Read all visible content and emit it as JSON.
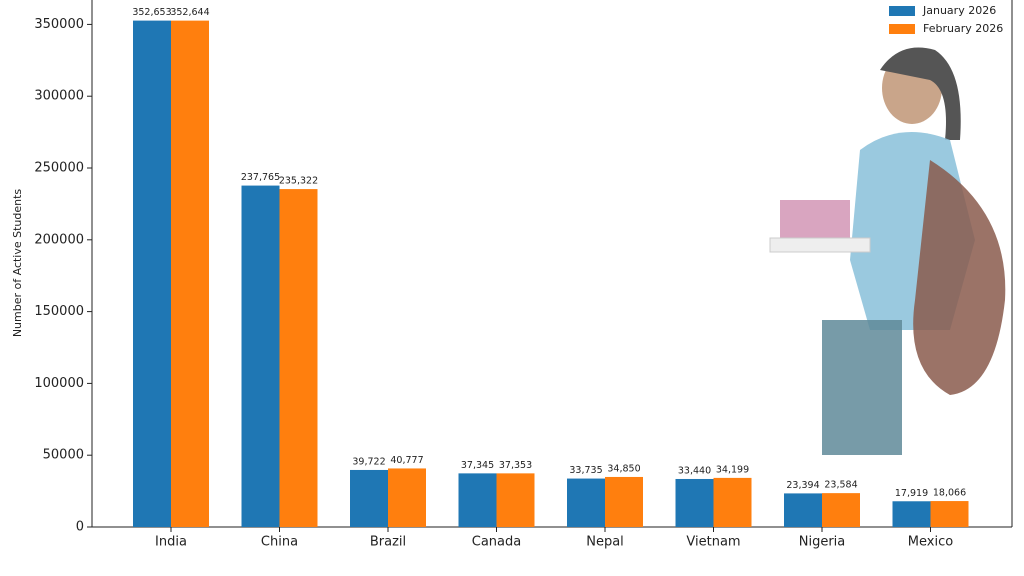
{
  "chart_data": {
    "type": "grouped_bar",
    "ylabel": "Number of Active Students",
    "categories": [
      "India",
      "China",
      "Brazil",
      "Canada",
      "Nepal",
      "Vietnam",
      "Nigeria",
      "Mexico"
    ],
    "series": [
      {
        "name": "January 2026",
        "color": "#1f77b4",
        "values": [
          352653,
          237765,
          39722,
          37345,
          33735,
          33440,
          23394,
          17919
        ],
        "value_labels": [
          "352,653",
          "237,765",
          "39,722",
          "37,345",
          "33,735",
          "33,440",
          "23,394",
          "17,919"
        ]
      },
      {
        "name": "February 2026",
        "color": "#ff7f0e",
        "values": [
          352644,
          235322,
          40777,
          37353,
          34850,
          34199,
          23584,
          18066
        ],
        "value_labels": [
          "352,644",
          "235,322",
          "40,777",
          "37,353",
          "34,850",
          "34,199",
          "23,584",
          "18,066"
        ]
      }
    ],
    "ylim": [
      0,
      367000
    ],
    "yticks": [
      0,
      50000,
      100000,
      150000,
      200000,
      250000,
      300000,
      350000
    ],
    "legend": "upper right"
  }
}
